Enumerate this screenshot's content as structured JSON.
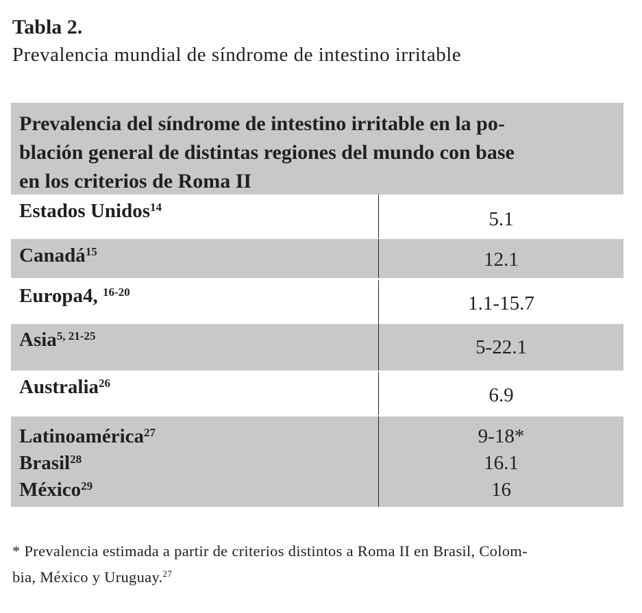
{
  "caption": {
    "label": "Tabla 2.",
    "subtitle": "Prevalencia mundial de síndrome de intestino irritable"
  },
  "table": {
    "header": {
      "line1": "Prevalencia del síndrome de intestino irritable en la po-",
      "line2": "blación general de distintas regiones del mundo con base",
      "line3": "en los criterios de Roma II"
    },
    "rows": [
      {
        "region": "Estados Unidos",
        "ref": "14",
        "value": "5.1"
      },
      {
        "region": "Canadá",
        "ref": "15",
        "value": "12.1"
      },
      {
        "region": "Europa4, ",
        "ref": "16-20",
        "value": "1.1-15.7"
      },
      {
        "region": "Asia",
        "ref": "5, 21-25",
        "value": "5-22.1"
      },
      {
        "region": "Australia",
        "ref": "26",
        "value": "6.9"
      },
      {
        "lines": [
          {
            "region": "Latinoamérica",
            "ref": "27",
            "value": "9-18*"
          },
          {
            "region": "Brasil",
            "ref": "28",
            "value": "16.1"
          },
          {
            "region": "México",
            "ref": "29",
            "value": "16"
          }
        ]
      }
    ]
  },
  "footnote": {
    "line1": "* Prevalencia estimada a partir de criterios distintos a Roma II en Brasil, Colom-",
    "line2": "bia, México y Uruguay.",
    "ref": "27"
  }
}
